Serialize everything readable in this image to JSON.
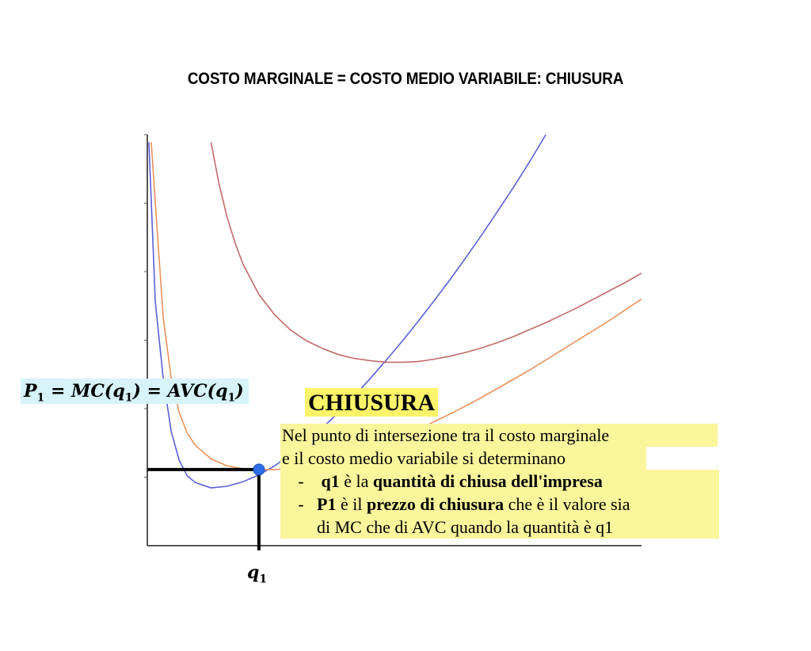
{
  "chart_data": {
    "type": "line",
    "title": "COSTO MARGINALE = COSTO MEDIO VARIABILE: CHIUSURA",
    "xlabel": "",
    "ylabel": "",
    "xlim": [
      0,
      6.2
    ],
    "ylim": [
      0,
      5.4
    ],
    "grid": false,
    "series": [
      {
        "color": "#5b5fd6",
        "x": [
          0.02,
          0.1,
          0.2,
          0.3,
          0.4,
          0.5,
          0.6,
          0.8,
          1.0,
          1.2,
          1.4,
          1.6,
          1.8,
          2.0,
          2.2,
          2.4,
          2.6,
          2.8,
          3.0,
          3.2,
          3.4,
          3.6,
          3.8,
          4.0,
          4.2,
          4.4,
          4.6,
          4.8,
          5.0
        ],
        "y": [
          5.3,
          3.2,
          2.2,
          1.5,
          1.12,
          0.92,
          0.83,
          0.76,
          0.78,
          0.84,
          0.93,
          1.05,
          1.2,
          1.36,
          1.55,
          1.75,
          1.97,
          2.2,
          2.44,
          2.69,
          2.95,
          3.22,
          3.5,
          3.79,
          4.09,
          4.4,
          4.72,
          5.05,
          5.4
        ]
      },
      {
        "color": "#e8925a",
        "x": [
          0.05,
          0.1,
          0.2,
          0.3,
          0.4,
          0.5,
          0.6,
          0.8,
          1.0,
          1.2,
          1.4,
          1.6,
          1.8,
          2.0,
          2.2,
          2.4,
          2.6,
          2.8,
          3.0,
          3.2,
          3.4,
          3.6,
          3.8,
          4.0,
          4.2,
          4.4,
          4.6,
          4.8,
          5.0,
          5.2,
          5.4,
          5.6,
          5.8,
          6.0,
          6.2
        ],
        "y": [
          5.3,
          4.5,
          3.0,
          2.2,
          1.75,
          1.48,
          1.32,
          1.14,
          1.05,
          1.01,
          1.0,
          1.0,
          1.02,
          1.05,
          1.09,
          1.14,
          1.2,
          1.27,
          1.35,
          1.44,
          1.53,
          1.63,
          1.73,
          1.84,
          1.95,
          2.07,
          2.19,
          2.31,
          2.44,
          2.57,
          2.7,
          2.83,
          2.96,
          3.1,
          3.24
        ]
      },
      {
        "color": "#c26a6a",
        "x": [
          0.8,
          0.9,
          1.0,
          1.1,
          1.2,
          1.4,
          1.6,
          1.8,
          2.0,
          2.2,
          2.4,
          2.6,
          2.8,
          3.0,
          3.2,
          3.4,
          3.6,
          3.8,
          4.0,
          4.2,
          4.4,
          4.6,
          4.8,
          5.0,
          5.2,
          5.4,
          5.6,
          5.8,
          6.0,
          6.2
        ],
        "y": [
          5.3,
          4.75,
          4.32,
          3.98,
          3.7,
          3.3,
          3.03,
          2.83,
          2.69,
          2.59,
          2.51,
          2.46,
          2.43,
          2.41,
          2.41,
          2.42,
          2.45,
          2.49,
          2.54,
          2.6,
          2.67,
          2.75,
          2.84,
          2.93,
          3.03,
          3.13,
          3.24,
          3.35,
          3.46,
          3.58
        ]
      }
    ],
    "point": {
      "x": 1.4,
      "y": 1.0,
      "color": "#2f6ee8"
    },
    "annotations": {
      "price_label": "P = MC(q) = AVC(q)",
      "quantity_label": "q"
    }
  },
  "annotation_box": {
    "heading": "CHIUSURA",
    "line1": "Nel punto di intersezione tra il costo marginale",
    "line2": "e il costo medio variabile si determinano",
    "dash": "-",
    "item1_bold": "q1",
    "item1_rest_a": " è la ",
    "item1_bold2": "quantità di chiusa dell'impresa",
    "item2_bold": "P1",
    "item2_rest_a": " è il ",
    "item2_bold2": "prezzo di chiusura",
    "item2_rest_b": " che è il valore sia",
    "item2_cont": "di MC che di AVC quando la quantità è q1"
  },
  "labels": {
    "p_prefix": "P",
    "p_sub": "1",
    "p_eq1": " = MC(q",
    "p_sub2": "1",
    "p_eq2": ") = AVC(q",
    "p_sub3": "1",
    "p_eq3": ")",
    "q_main": "q",
    "q_sub": "1"
  }
}
